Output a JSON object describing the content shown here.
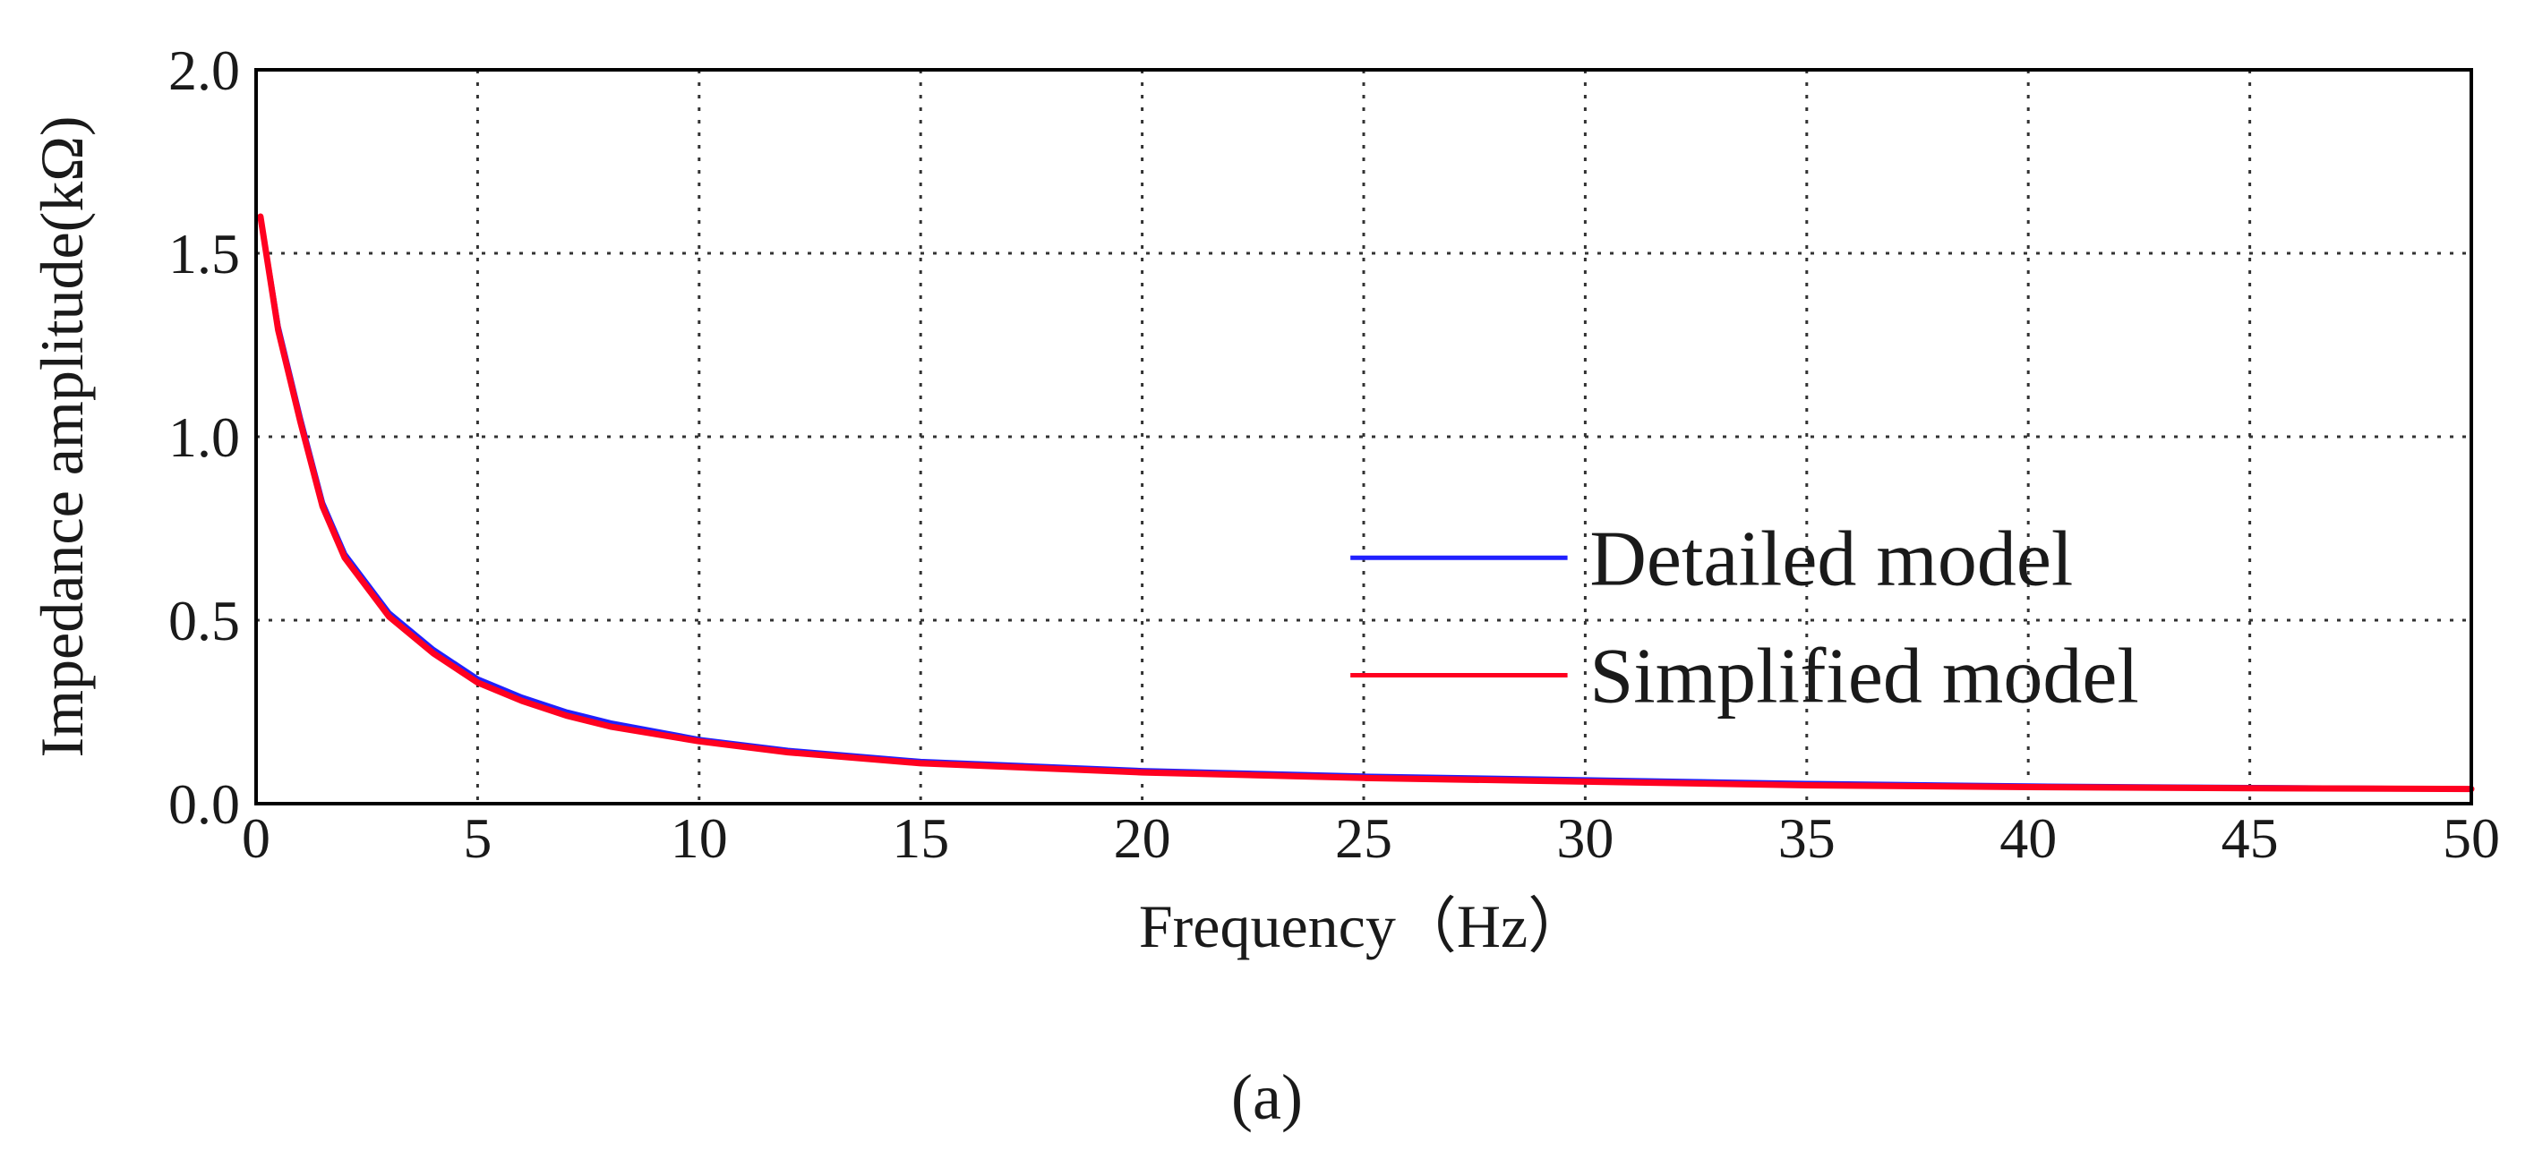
{
  "chart_data": {
    "type": "line",
    "title": "",
    "xlabel": "Frequency（Hz）",
    "ylabel": "Impedance amplitude(kΩ)",
    "xlim": [
      0,
      50
    ],
    "ylim": [
      0,
      2.0
    ],
    "x_ticks": [
      0,
      5,
      10,
      15,
      20,
      25,
      30,
      35,
      40,
      45,
      50
    ],
    "x_tick_labels": [
      "0",
      "5",
      "10",
      "15",
      "20",
      "25",
      "30",
      "35",
      "40",
      "45",
      "50"
    ],
    "y_ticks": [
      0.0,
      0.5,
      1.0,
      1.5,
      2.0
    ],
    "y_tick_labels": [
      "0.0",
      "0.5",
      "1.0",
      "1.5",
      "2.0"
    ],
    "grid": true,
    "legend_position": "center-right",
    "x": [
      0.1,
      0.5,
      1,
      1.5,
      2,
      3,
      4,
      5,
      6,
      7,
      8,
      10,
      12,
      15,
      20,
      25,
      30,
      35,
      40,
      45,
      50
    ],
    "series": [
      {
        "name": "Detailed model",
        "color": "#2020ff",
        "values": [
          1.6,
          1.3,
          1.05,
          0.82,
          0.68,
          0.52,
          0.42,
          0.34,
          0.29,
          0.25,
          0.22,
          0.175,
          0.145,
          0.115,
          0.09,
          0.075,
          0.065,
          0.055,
          0.048,
          0.044,
          0.04
        ]
      },
      {
        "name": "Simplified model",
        "color": "#ff0020",
        "values": [
          1.6,
          1.29,
          1.04,
          0.81,
          0.67,
          0.51,
          0.41,
          0.33,
          0.28,
          0.24,
          0.21,
          0.17,
          0.14,
          0.11,
          0.085,
          0.07,
          0.06,
          0.05,
          0.045,
          0.042,
          0.04
        ]
      }
    ]
  },
  "caption": "(a)"
}
